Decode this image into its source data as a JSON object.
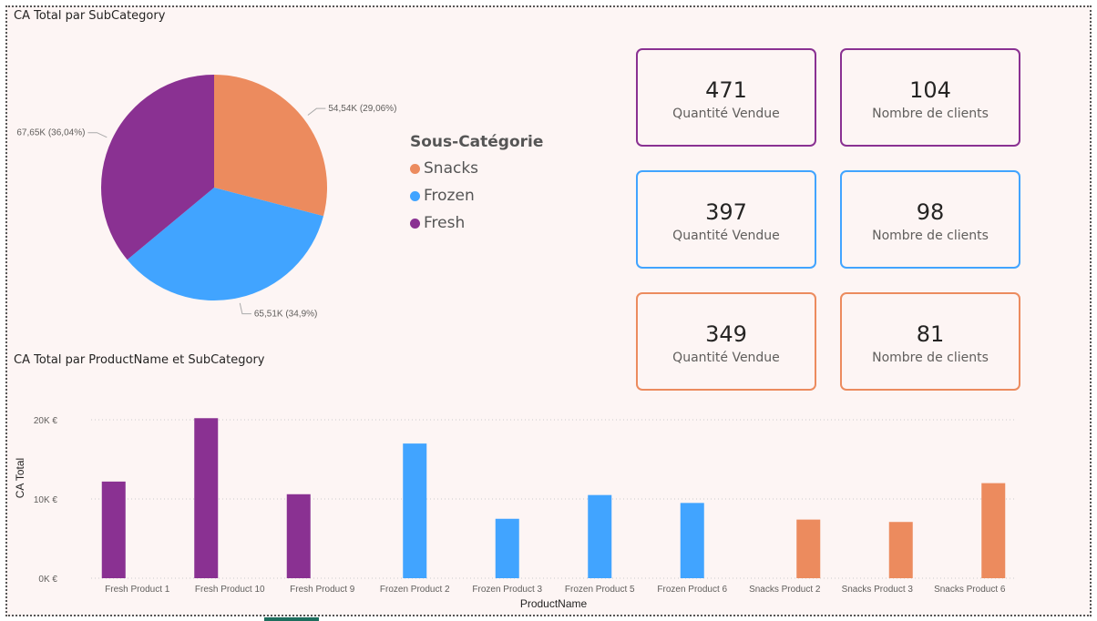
{
  "pie_title": "CA Total par SubCategory",
  "bar_title": "CA Total par ProductName et SubCategory",
  "legend": {
    "title": "Sous-Catégorie",
    "items": [
      {
        "label": "Snacks",
        "color": "#EC8B5E"
      },
      {
        "label": "Frozen",
        "color": "#41A4FF"
      },
      {
        "label": "Fresh",
        "color": "#8A3192"
      }
    ]
  },
  "cards": [
    {
      "value": "471",
      "label": "Quantité Vendue",
      "color": "#8A3192"
    },
    {
      "value": "104",
      "label": "Nombre de clients",
      "color": "#8A3192"
    },
    {
      "value": "397",
      "label": "Quantité Vendue",
      "color": "#41A4FF"
    },
    {
      "value": "98",
      "label": "Nombre de clients",
      "color": "#41A4FF"
    },
    {
      "value": "349",
      "label": "Quantité Vendue",
      "color": "#EC8B5E"
    },
    {
      "value": "81",
      "label": "Nombre de clients",
      "color": "#EC8B5E"
    }
  ],
  "chart_data": [
    {
      "type": "pie",
      "title": "CA Total par SubCategory",
      "legend_title": "Sous-Catégorie",
      "legend_placement": "right",
      "slices": [
        {
          "name": "Snacks",
          "value": 54540,
          "percent": 29.06,
          "label": "54,54K (29,06%)",
          "color": "#EC8B5E"
        },
        {
          "name": "Frozen",
          "value": 65510,
          "percent": 34.9,
          "label": "65,51K (34,9%)",
          "color": "#41A4FF"
        },
        {
          "name": "Fresh",
          "value": 67650,
          "percent": 36.04,
          "label": "67,65K (36,04%)",
          "color": "#8A3192"
        }
      ]
    },
    {
      "type": "bar",
      "title": "CA Total par ProductName et SubCategory",
      "xlabel": "ProductName",
      "ylabel": "CA Total",
      "ylim": [
        0,
        20000
      ],
      "yticks": [
        {
          "value": 0,
          "label": "0K €"
        },
        {
          "value": 10000,
          "label": "10K €"
        },
        {
          "value": 20000,
          "label": "20K €"
        }
      ],
      "grid": true,
      "categories": [
        "Fresh Product 1",
        "Fresh Product 10",
        "Fresh Product 9",
        "Frozen Product 2",
        "Frozen Product 3",
        "Frozen Product 5",
        "Frozen Product 6",
        "Snacks Product 2",
        "Snacks Product 3",
        "Snacks Product 6"
      ],
      "subcategory": [
        "Fresh",
        "Fresh",
        "Fresh",
        "Frozen",
        "Frozen",
        "Frozen",
        "Frozen",
        "Snacks",
        "Snacks",
        "Snacks"
      ],
      "values": [
        12200,
        20200,
        10600,
        17000,
        7500,
        10500,
        9500,
        7400,
        7100,
        12000
      ],
      "colors": {
        "Fresh": "#8A3192",
        "Frozen": "#41A4FF",
        "Snacks": "#EC8B5E"
      }
    }
  ]
}
